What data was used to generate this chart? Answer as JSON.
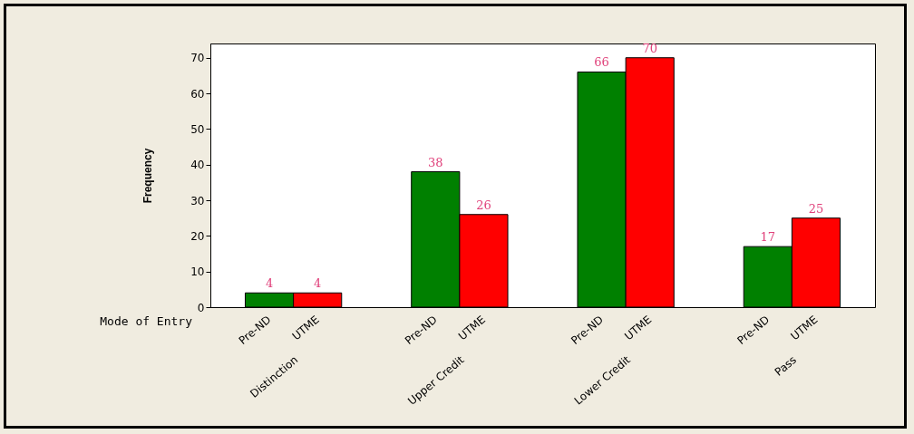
{
  "chart_data": {
    "type": "bar",
    "xlabel": "Mode of Entry",
    "ylabel": "Frequency",
    "categories": [
      "Distinction",
      "Upper Credit",
      "Lower Credit",
      "Pass"
    ],
    "series": [
      {
        "name": "Pre-ND",
        "color": "#008000",
        "values": [
          4,
          38,
          66,
          17
        ]
      },
      {
        "name": "UTME",
        "color": "#ff0000",
        "values": [
          4,
          26,
          70,
          25
        ]
      }
    ],
    "ylim": [
      0,
      74
    ],
    "yticks": [
      0,
      10,
      20,
      30,
      40,
      50,
      60,
      70
    ],
    "grid": false,
    "legend": false,
    "data_labels": true
  }
}
